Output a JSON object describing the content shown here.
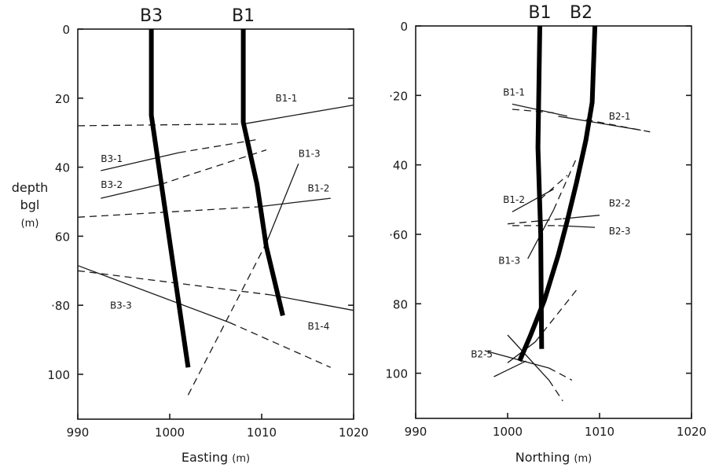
{
  "y_axis": {
    "label_lines": [
      "depth",
      "bgl",
      "(m)"
    ],
    "ticks": [
      "0",
      "20",
      "40",
      "60",
      "80",
      "100"
    ]
  },
  "panels": [
    {
      "id": "easting",
      "xlabel_main": "Easting",
      "xlabel_unit": "(m)",
      "xticks": [
        "990",
        "1000",
        "1010",
        "1020"
      ],
      "ytick_prefix": [
        "",
        "",
        "",
        "",
        "·",
        ""
      ],
      "xrange": [
        990,
        1020
      ],
      "yrange": [
        0,
        113
      ],
      "well_headers": [
        {
          "label": "B3",
          "x": 998
        },
        {
          "label": "B1",
          "x": 1008
        }
      ],
      "wells": [
        {
          "name": "B3",
          "points": [
            [
              998,
              0
            ],
            [
              998,
              25
            ],
            [
              1002,
              98
            ]
          ]
        },
        {
          "name": "B1",
          "points": [
            [
              1008,
              0
            ],
            [
              1008,
              27
            ],
            [
              1009.5,
              45
            ],
            [
              1010.5,
              63
            ],
            [
              1012.3,
              83
            ]
          ]
        }
      ],
      "fractures": [
        {
          "name": "B1-1",
          "solid": [
            [
              1008,
              27.5
            ],
            [
              1020,
              22
            ]
          ],
          "dashed": [
            [
              990,
              28
            ],
            [
              1008,
              27.5
            ]
          ]
        },
        {
          "name": "B3-1",
          "solid": [
            [
              992.5,
              41
            ],
            [
              1001,
              35.8
            ]
          ],
          "dashed": [
            [
              1001,
              35.8
            ],
            [
              1009.5,
              32
            ]
          ]
        },
        {
          "name": "B3-2",
          "solid": [
            [
              992.5,
              49
            ],
            [
              999,
              45
            ]
          ],
          "dashed": [
            [
              999,
              45
            ],
            [
              1010.5,
              35
            ]
          ]
        },
        {
          "name": "B1-2",
          "solid": [
            [
              1009.5,
              51.5
            ],
            [
              1017.5,
              49
            ]
          ],
          "dashed": [
            [
              990,
              54.5
            ],
            [
              1009.5,
              51.5
            ]
          ]
        },
        {
          "name": "B1-3",
          "solid": [
            [
              1010.5,
              62
            ],
            [
              1014,
              39
            ]
          ],
          "dashed": [
            [
              1002,
              106
            ],
            [
              1010.5,
              62
            ]
          ]
        },
        {
          "name": "B3-3",
          "solid": [
            [
              990,
              68.5
            ],
            [
              1006.5,
              85
            ]
          ],
          "dashed": [
            [
              1006.5,
              85
            ],
            [
              1017.5,
              98
            ]
          ]
        },
        {
          "name": "B1-4",
          "solid": [
            [
              1011,
              77
            ],
            [
              1020,
              81.5
            ]
          ],
          "dashed": [
            [
              990,
              70
            ],
            [
              1011,
              77
            ]
          ]
        }
      ],
      "labels": [
        {
          "text": "B1-1",
          "x": 1011.5,
          "y": 21
        },
        {
          "text": "B3-1",
          "x": 992.5,
          "y": 38.5
        },
        {
          "text": "B3-2",
          "x": 992.5,
          "y": 46
        },
        {
          "text": "B1-3",
          "x": 1014,
          "y": 37
        },
        {
          "text": "B1-2",
          "x": 1015,
          "y": 47
        },
        {
          "text": "B3-3",
          "x": 993.5,
          "y": 81
        },
        {
          "text": "B1-4",
          "x": 1015,
          "y": 87
        }
      ]
    },
    {
      "id": "northing",
      "xlabel_main": "Northing",
      "xlabel_unit": "(m)",
      "xticks": [
        "990",
        "1000",
        "1010",
        "1020"
      ],
      "ytick_prefix": [
        "",
        "·",
        "",
        "·",
        "",
        ""
      ],
      "xrange": [
        990,
        1020
      ],
      "yrange": [
        0,
        113
      ],
      "well_headers": [
        {
          "label": "B1",
          "x": 1003.5
        },
        {
          "label": "B2",
          "x": 1008
        }
      ],
      "wells": [
        {
          "name": "B1",
          "points": [
            [
              1003.5,
              0
            ],
            [
              1003.3,
              35
            ],
            [
              1003.6,
              60
            ],
            [
              1003.7,
              93
            ]
          ]
        },
        {
          "name": "B2",
          "points": [
            [
              1009.5,
              0
            ],
            [
              1009.2,
              22
            ],
            [
              1008.5,
              33
            ],
            [
              1007.5,
              45
            ],
            [
              1006.5,
              56
            ],
            [
              1005.5,
              66
            ],
            [
              1004,
              79
            ],
            [
              1002.5,
              89
            ],
            [
              1001.3,
              96.5
            ]
          ]
        }
      ],
      "fractures": [
        {
          "name": "B1-1",
          "solid": [
            [
              1000.5,
              22.5
            ],
            [
              1006.5,
              26
            ]
          ],
          "dashed": [
            [
              1000.5,
              24
            ],
            [
              1005,
              25
            ]
          ]
        },
        {
          "name": "B2-1",
          "solid": [
            [
              1005.5,
              26
            ],
            [
              1014.5,
              30
            ]
          ],
          "dashed": [
            [
              1008.5,
              27
            ],
            [
              1015.5,
              30.5
            ]
          ]
        },
        {
          "name": "B1-2",
          "solid": [
            [
              1000.5,
              53.5
            ],
            [
              1005,
              47
            ]
          ],
          "dashed": [
            [
              1003.5,
              50
            ],
            [
              1006.5,
              43
            ]
          ]
        },
        {
          "name": "B2-2",
          "solid": [
            [
              1006,
              55.5
            ],
            [
              1010,
              54.5
            ]
          ],
          "dashed": [
            [
              1000,
              57
            ],
            [
              1006,
              55.5
            ]
          ]
        },
        {
          "name": "B2-3",
          "solid": [
            [
              1005.5,
              57.5
            ],
            [
              1009.5,
              58
            ]
          ],
          "dashed": [
            [
              1000.5,
              57.5
            ],
            [
              1005.5,
              57.5
            ]
          ]
        },
        {
          "name": "B1-3",
          "solid": [
            [
              1002.2,
              67
            ],
            [
              1005,
              53
            ]
          ],
          "dashed": [
            [
              1005,
              53
            ],
            [
              1007.5,
              38
            ]
          ]
        },
        {
          "name": "B2-5",
          "solid": [
            [
              1000,
              97
            ],
            [
              1003,
              91
            ]
          ],
          "dashed": [
            [
              1003,
              91
            ],
            [
              1007.5,
              76
            ]
          ]
        },
        {
          "name": "B2-5b",
          "solid": [
            [
              1000,
              89
            ],
            [
              1004.5,
              102
            ]
          ],
          "dashed": [
            [
              1004.5,
              102
            ],
            [
              1006,
              108
            ]
          ]
        },
        {
          "name": "B2-5c",
          "solid": [
            [
              997.5,
              93.5
            ],
            [
              1004.5,
              98.5
            ]
          ],
          "dashed": [
            [
              1004.5,
              98.5
            ],
            [
              1007,
              102
            ]
          ]
        },
        {
          "name": "B2-5d",
          "solid": [
            [
              998.5,
              101
            ],
            [
              1002,
              96.5
            ]
          ],
          "dashed": []
        }
      ],
      "labels": [
        {
          "text": "B1-1",
          "x": 999.5,
          "y": 20
        },
        {
          "text": "B2-1",
          "x": 1011,
          "y": 27
        },
        {
          "text": "B1-2",
          "x": 999.5,
          "y": 51
        },
        {
          "text": "B2-2",
          "x": 1011,
          "y": 52
        },
        {
          "text": "B2-3",
          "x": 1011,
          "y": 60
        },
        {
          "text": "B1-3",
          "x": 999,
          "y": 68.5
        },
        {
          "text": "B2-5",
          "x": 996,
          "y": 95.5
        }
      ]
    }
  ]
}
